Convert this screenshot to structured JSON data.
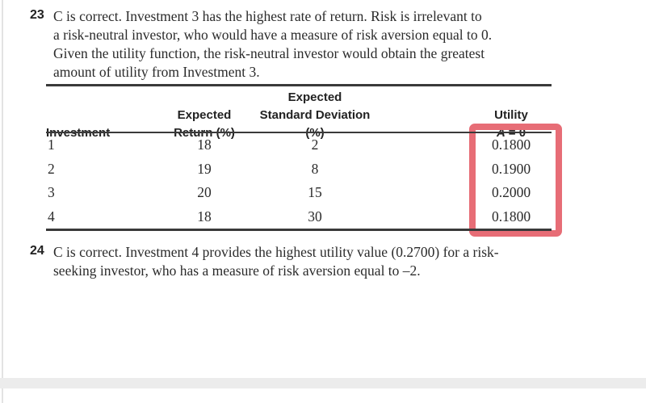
{
  "page": {
    "background": "#ffffff",
    "left_edge_color": "#e3e3e3",
    "bottom_bar_color": "#ececec",
    "text_color": "#2b2b2b",
    "rule_color": "#3a3a3a",
    "highlight_color": "#e76d76"
  },
  "item23": {
    "number": "23",
    "lines": [
      "C is correct. Investment 3 has the highest rate of return. Risk is irrelevant to",
      "a risk-neutral investor, who would have a measure of risk aversion equal to 0.",
      "Given the utility function, the risk-neutral investor would obtain the greatest",
      "amount of utility from Investment 3."
    ]
  },
  "table": {
    "headers": {
      "col1": "Investment",
      "col2_line1": "Expected",
      "col2_line2": "Return (%)",
      "col3_line1": "Expected",
      "col3_line2": "Standard Deviation (%)",
      "col4_line1": "Utility",
      "col4_line2_var": "A",
      "col4_line2_rest": "= 0"
    },
    "rows": [
      {
        "investment": "1",
        "expected_return": "18",
        "expected_std_dev": "2",
        "utility": "0.1800"
      },
      {
        "investment": "2",
        "expected_return": "19",
        "expected_std_dev": "8",
        "utility": "0.1900"
      },
      {
        "investment": "3",
        "expected_return": "20",
        "expected_std_dev": "15",
        "utility": "0.2000"
      },
      {
        "investment": "4",
        "expected_return": "18",
        "expected_std_dev": "30",
        "utility": "0.1800"
      }
    ]
  },
  "item24": {
    "number": "24",
    "lines": [
      "C is correct. Investment 4 provides the highest utility value (0.2700) for a risk-",
      "seeking investor, who has a measure of risk aversion equal to –2."
    ]
  }
}
